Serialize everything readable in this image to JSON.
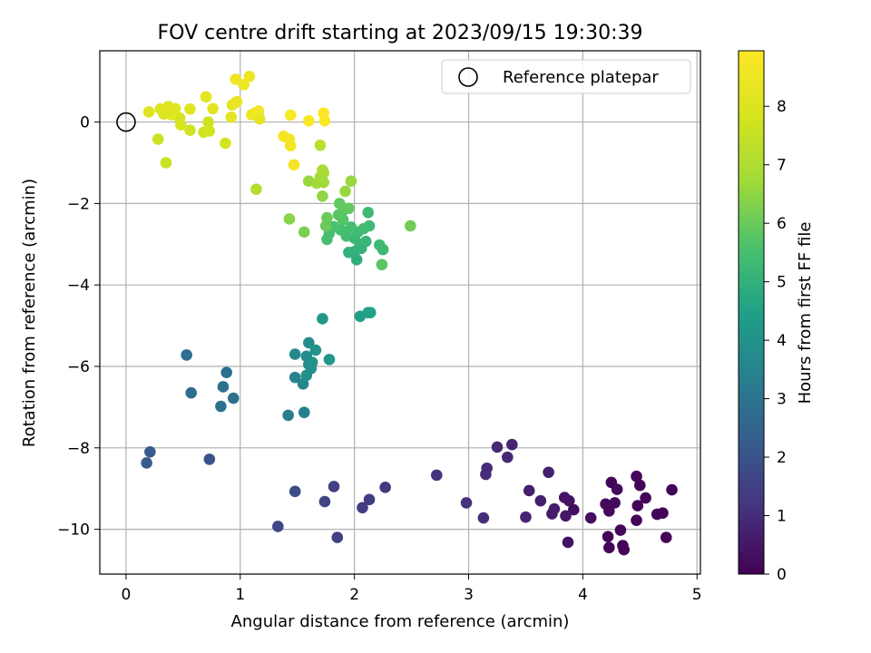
{
  "chart_data": {
    "type": "scatter",
    "title": "FOV centre drift starting at 2023/09/15 19:30:39",
    "xlabel": "Angular distance from reference (arcmin)",
    "ylabel": "Rotation from reference (arcmin)",
    "colorbar_label": "Hours from first FF file",
    "xlim": [
      -0.23,
      5.03
    ],
    "ylim": [
      -11.1,
      1.75
    ],
    "xticks": [
      0,
      1,
      2,
      3,
      4,
      5
    ],
    "yticks": [
      0,
      -2,
      -4,
      -6,
      -8,
      -10
    ],
    "colorbar_range": [
      0,
      8.95
    ],
    "colorbar_ticks": [
      0,
      1,
      2,
      3,
      4,
      5,
      6,
      7,
      8
    ],
    "colormap": "viridis",
    "grid": true,
    "legend_position": "upper right",
    "reference": {
      "label": "Reference platepar",
      "x": 0,
      "y": 0
    },
    "points": [
      {
        "x": 4.47,
        "y": -8.7,
        "h": 0.1
      },
      {
        "x": 4.25,
        "y": -8.85,
        "h": 0.1
      },
      {
        "x": 4.78,
        "y": -9.03,
        "h": 0.1
      },
      {
        "x": 4.5,
        "y": -8.92,
        "h": 0.1
      },
      {
        "x": 4.55,
        "y": -9.23,
        "h": 0.1
      },
      {
        "x": 4.48,
        "y": -9.42,
        "h": 0.1
      },
      {
        "x": 4.65,
        "y": -9.63,
        "h": 0.1
      },
      {
        "x": 4.7,
        "y": -9.6,
        "h": 0.1
      },
      {
        "x": 4.47,
        "y": -9.78,
        "h": 0.1
      },
      {
        "x": 4.33,
        "y": -10.02,
        "h": 0.1
      },
      {
        "x": 4.22,
        "y": -10.18,
        "h": 0.1
      },
      {
        "x": 4.73,
        "y": -10.2,
        "h": 0.1
      },
      {
        "x": 4.35,
        "y": -10.4,
        "h": 0.1
      },
      {
        "x": 4.23,
        "y": -10.45,
        "h": 0.1
      },
      {
        "x": 4.36,
        "y": -10.5,
        "h": 0.1
      },
      {
        "x": 4.2,
        "y": -9.38,
        "h": 0.2
      },
      {
        "x": 4.28,
        "y": -9.35,
        "h": 0.2
      },
      {
        "x": 4.23,
        "y": -9.55,
        "h": 0.2
      },
      {
        "x": 4.3,
        "y": -9.02,
        "h": 0.2
      },
      {
        "x": 4.07,
        "y": -9.72,
        "h": 0.3
      },
      {
        "x": 3.92,
        "y": -9.52,
        "h": 0.3
      },
      {
        "x": 3.88,
        "y": -9.3,
        "h": 0.4
      },
      {
        "x": 3.84,
        "y": -9.22,
        "h": 0.4
      },
      {
        "x": 3.85,
        "y": -9.67,
        "h": 0.5
      },
      {
        "x": 3.87,
        "y": -10.32,
        "h": 0.4
      },
      {
        "x": 3.75,
        "y": -9.5,
        "h": 0.6
      },
      {
        "x": 3.73,
        "y": -9.62,
        "h": 0.6
      },
      {
        "x": 3.7,
        "y": -8.6,
        "h": 0.7
      },
      {
        "x": 3.63,
        "y": -9.3,
        "h": 0.7
      },
      {
        "x": 3.53,
        "y": -9.05,
        "h": 0.7
      },
      {
        "x": 3.5,
        "y": -9.7,
        "h": 0.8
      },
      {
        "x": 3.38,
        "y": -7.92,
        "h": 0.8
      },
      {
        "x": 3.25,
        "y": -7.98,
        "h": 0.9
      },
      {
        "x": 3.34,
        "y": -8.23,
        "h": 0.9
      },
      {
        "x": 3.16,
        "y": -8.5,
        "h": 1.0
      },
      {
        "x": 3.15,
        "y": -8.65,
        "h": 1.0
      },
      {
        "x": 3.13,
        "y": -9.72,
        "h": 1.0
      },
      {
        "x": 2.98,
        "y": -9.35,
        "h": 1.1
      },
      {
        "x": 2.72,
        "y": -8.67,
        "h": 1.2
      },
      {
        "x": 2.27,
        "y": -8.97,
        "h": 1.3
      },
      {
        "x": 2.13,
        "y": -9.27,
        "h": 1.4
      },
      {
        "x": 2.07,
        "y": -9.47,
        "h": 1.4
      },
      {
        "x": 1.85,
        "y": -10.2,
        "h": 1.5
      },
      {
        "x": 1.82,
        "y": -8.95,
        "h": 1.5
      },
      {
        "x": 1.74,
        "y": -9.32,
        "h": 1.6
      },
      {
        "x": 1.33,
        "y": -9.93,
        "h": 1.7
      },
      {
        "x": 1.48,
        "y": -9.07,
        "h": 1.8
      },
      {
        "x": 0.73,
        "y": -8.28,
        "h": 2.0
      },
      {
        "x": 0.21,
        "y": -8.1,
        "h": 2.2
      },
      {
        "x": 0.18,
        "y": -8.37,
        "h": 2.2
      },
      {
        "x": 0.53,
        "y": -5.72,
        "h": 2.8
      },
      {
        "x": 0.57,
        "y": -6.65,
        "h": 2.8
      },
      {
        "x": 0.88,
        "y": -6.15,
        "h": 2.9
      },
      {
        "x": 0.85,
        "y": -6.5,
        "h": 2.9
      },
      {
        "x": 0.83,
        "y": -6.98,
        "h": 2.9
      },
      {
        "x": 0.94,
        "y": -6.78,
        "h": 2.9
      },
      {
        "x": 1.42,
        "y": -7.2,
        "h": 3.3
      },
      {
        "x": 1.56,
        "y": -7.13,
        "h": 3.4
      },
      {
        "x": 1.48,
        "y": -6.27,
        "h": 3.5
      },
      {
        "x": 1.55,
        "y": -6.43,
        "h": 3.6
      },
      {
        "x": 1.48,
        "y": -5.7,
        "h": 3.7
      },
      {
        "x": 1.6,
        "y": -5.42,
        "h": 3.8
      },
      {
        "x": 1.58,
        "y": -5.75,
        "h": 3.8
      },
      {
        "x": 1.6,
        "y": -5.95,
        "h": 3.8
      },
      {
        "x": 1.58,
        "y": -6.22,
        "h": 3.9
      },
      {
        "x": 1.62,
        "y": -6.05,
        "h": 3.9
      },
      {
        "x": 1.63,
        "y": -5.9,
        "h": 4.0
      },
      {
        "x": 1.66,
        "y": -5.6,
        "h": 4.0
      },
      {
        "x": 1.78,
        "y": -5.83,
        "h": 4.1
      },
      {
        "x": 1.72,
        "y": -4.83,
        "h": 4.2
      },
      {
        "x": 2.05,
        "y": -4.77,
        "h": 4.4
      },
      {
        "x": 2.12,
        "y": -4.68,
        "h": 4.5
      },
      {
        "x": 2.14,
        "y": -4.68,
        "h": 4.5
      },
      {
        "x": 2.02,
        "y": -3.38,
        "h": 4.9
      },
      {
        "x": 2.0,
        "y": -3.18,
        "h": 5.0
      },
      {
        "x": 1.95,
        "y": -3.2,
        "h": 5.0
      },
      {
        "x": 2.06,
        "y": -3.1,
        "h": 5.0
      },
      {
        "x": 2.05,
        "y": -3.0,
        "h": 5.1
      },
      {
        "x": 2.1,
        "y": -2.93,
        "h": 5.2
      },
      {
        "x": 2.0,
        "y": -2.85,
        "h": 5.2
      },
      {
        "x": 2.03,
        "y": -2.7,
        "h": 5.3
      },
      {
        "x": 2.12,
        "y": -2.22,
        "h": 5.3
      },
      {
        "x": 2.13,
        "y": -2.55,
        "h": 5.3
      },
      {
        "x": 2.08,
        "y": -2.62,
        "h": 5.4
      },
      {
        "x": 2.22,
        "y": -3.02,
        "h": 5.3
      },
      {
        "x": 2.25,
        "y": -3.13,
        "h": 5.3
      },
      {
        "x": 2.24,
        "y": -3.5,
        "h": 5.8
      },
      {
        "x": 2.49,
        "y": -2.55,
        "h": 6.1
      },
      {
        "x": 1.93,
        "y": -2.8,
        "h": 5.4
      },
      {
        "x": 1.88,
        "y": -2.65,
        "h": 5.5
      },
      {
        "x": 1.97,
        "y": -2.58,
        "h": 5.5
      },
      {
        "x": 1.76,
        "y": -2.88,
        "h": 5.5
      },
      {
        "x": 1.78,
        "y": -2.73,
        "h": 5.5
      },
      {
        "x": 1.82,
        "y": -2.57,
        "h": 5.6
      },
      {
        "x": 1.9,
        "y": -2.4,
        "h": 5.7
      },
      {
        "x": 1.86,
        "y": -2.28,
        "h": 5.8
      },
      {
        "x": 1.91,
        "y": -2.15,
        "h": 5.8
      },
      {
        "x": 1.87,
        "y": -2.0,
        "h": 5.9
      },
      {
        "x": 1.95,
        "y": -2.12,
        "h": 5.9
      },
      {
        "x": 1.75,
        "y": -2.55,
        "h": 6.0
      },
      {
        "x": 1.76,
        "y": -2.35,
        "h": 6.0
      },
      {
        "x": 1.56,
        "y": -2.7,
        "h": 6.2
      },
      {
        "x": 1.43,
        "y": -2.38,
        "h": 6.4
      },
      {
        "x": 1.72,
        "y": -1.82,
        "h": 6.5
      },
      {
        "x": 1.92,
        "y": -1.7,
        "h": 6.6
      },
      {
        "x": 1.97,
        "y": -1.45,
        "h": 6.6
      },
      {
        "x": 1.6,
        "y": -1.45,
        "h": 6.6
      },
      {
        "x": 1.67,
        "y": -1.5,
        "h": 6.7
      },
      {
        "x": 1.73,
        "y": -1.48,
        "h": 6.7
      },
      {
        "x": 1.7,
        "y": -1.35,
        "h": 6.8
      },
      {
        "x": 1.73,
        "y": -1.25,
        "h": 6.8
      },
      {
        "x": 1.72,
        "y": -1.18,
        "h": 6.9
      },
      {
        "x": 1.14,
        "y": -1.65,
        "h": 7.1
      },
      {
        "x": 1.7,
        "y": -0.57,
        "h": 7.2
      },
      {
        "x": 0.28,
        "y": -0.42,
        "h": 7.6
      },
      {
        "x": 0.35,
        "y": -1.0,
        "h": 7.6
      },
      {
        "x": 0.56,
        "y": -0.2,
        "h": 7.7
      },
      {
        "x": 0.68,
        "y": -0.25,
        "h": 7.7
      },
      {
        "x": 0.72,
        "y": 0.0,
        "h": 7.7
      },
      {
        "x": 0.73,
        "y": -0.22,
        "h": 7.8
      },
      {
        "x": 0.87,
        "y": -0.52,
        "h": 7.8
      },
      {
        "x": 0.47,
        "y": 0.1,
        "h": 7.9
      },
      {
        "x": 0.48,
        "y": -0.07,
        "h": 7.9
      },
      {
        "x": 0.2,
        "y": 0.25,
        "h": 8.0
      },
      {
        "x": 0.33,
        "y": 0.2,
        "h": 8.0
      },
      {
        "x": 0.37,
        "y": 0.38,
        "h": 8.0
      },
      {
        "x": 0.3,
        "y": 0.32,
        "h": 8.0
      },
      {
        "x": 0.36,
        "y": 0.25,
        "h": 8.1
      },
      {
        "x": 0.4,
        "y": 0.18,
        "h": 8.1
      },
      {
        "x": 0.43,
        "y": 0.33,
        "h": 8.1
      },
      {
        "x": 0.56,
        "y": 0.32,
        "h": 8.1
      },
      {
        "x": 0.7,
        "y": 0.62,
        "h": 8.2
      },
      {
        "x": 0.76,
        "y": 0.33,
        "h": 8.2
      },
      {
        "x": 0.92,
        "y": 0.12,
        "h": 8.2
      },
      {
        "x": 0.93,
        "y": 0.42,
        "h": 8.3
      },
      {
        "x": 0.96,
        "y": 0.48,
        "h": 8.3
      },
      {
        "x": 0.97,
        "y": 0.5,
        "h": 8.4
      },
      {
        "x": 0.96,
        "y": 1.05,
        "h": 8.5
      },
      {
        "x": 1.03,
        "y": 0.92,
        "h": 8.5
      },
      {
        "x": 1.08,
        "y": 1.12,
        "h": 8.5
      },
      {
        "x": 1.1,
        "y": 0.18,
        "h": 8.4
      },
      {
        "x": 1.13,
        "y": 0.22,
        "h": 8.5
      },
      {
        "x": 1.17,
        "y": 0.08,
        "h": 8.3
      },
      {
        "x": 1.16,
        "y": 0.27,
        "h": 8.6
      },
      {
        "x": 1.38,
        "y": -0.35,
        "h": 8.7
      },
      {
        "x": 1.43,
        "y": -0.42,
        "h": 8.7
      },
      {
        "x": 1.44,
        "y": -0.58,
        "h": 8.7
      },
      {
        "x": 1.47,
        "y": -1.05,
        "h": 8.7
      },
      {
        "x": 1.44,
        "y": 0.17,
        "h": 8.8
      },
      {
        "x": 1.6,
        "y": 0.03,
        "h": 8.8
      },
      {
        "x": 1.73,
        "y": 0.22,
        "h": 8.9
      },
      {
        "x": 1.74,
        "y": 0.03,
        "h": 8.9
      }
    ]
  }
}
